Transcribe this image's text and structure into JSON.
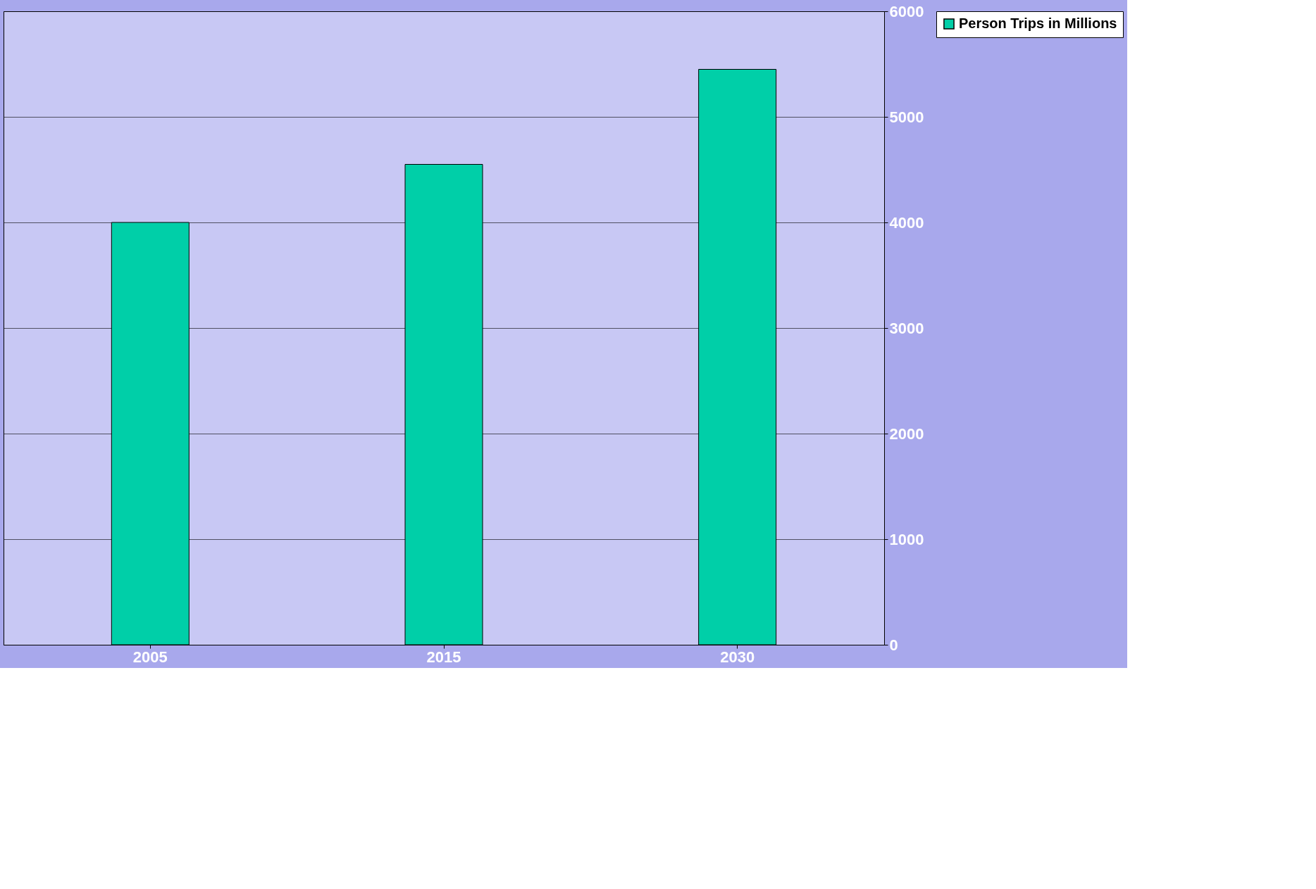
{
  "chart_data": {
    "type": "bar",
    "categories": [
      "2005",
      "2015",
      "2030"
    ],
    "series": [
      {
        "name": "Person Trips in Millions",
        "color": "#00cfa8",
        "values": [
          4000,
          4550,
          5450
        ]
      }
    ],
    "ylim": [
      0,
      6000
    ],
    "yticks": [
      0,
      1000,
      2000,
      3000,
      4000,
      5000,
      6000
    ],
    "grid": "y",
    "legend": "right"
  }
}
